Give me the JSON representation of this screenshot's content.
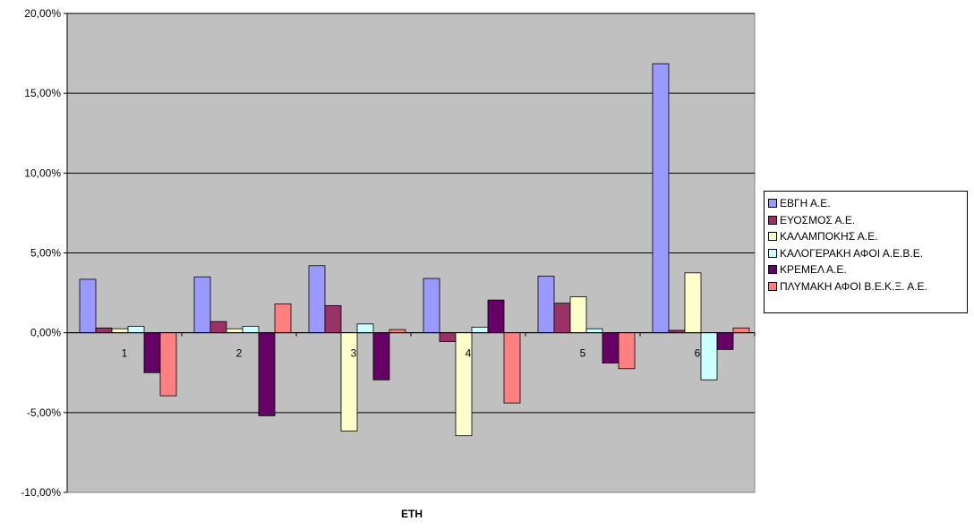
{
  "chart_data": {
    "type": "bar",
    "xlabel": "ΕΤΗ",
    "ylabel": "",
    "ylim": [
      -10,
      20
    ],
    "yticks": [
      -10,
      -5,
      0,
      5,
      10,
      15,
      20
    ],
    "ytick_labels": [
      "-10,00%",
      "-5,00%",
      "0,00%",
      "5,00%",
      "10,00%",
      "15,00%",
      "20,00%"
    ],
    "categories": [
      "1",
      "2",
      "3",
      "4",
      "5",
      "6"
    ],
    "grid": true,
    "legend_position": "right",
    "plot_background": "#c0c0c0",
    "series": [
      {
        "name": "ΕΒΓΗ Α.Ε.",
        "color": "#9999ff",
        "values": [
          3.35,
          3.5,
          4.2,
          3.4,
          3.55,
          16.85
        ]
      },
      {
        "name": "ΕΥΟΣΜΟΣ Α.Ε.",
        "color": "#993366",
        "values": [
          0.3,
          0.7,
          1.7,
          -0.55,
          1.85,
          0.15
        ]
      },
      {
        "name": "ΚΑΛΑΜΠΟΚΗΣ Α.Ε.",
        "color": "#ffffcc",
        "values": [
          0.25,
          0.25,
          -6.15,
          -6.45,
          2.25,
          3.75
        ]
      },
      {
        "name": "ΚΑΛΟΓΕΡΑΚΗ ΑΦΟΙ Α.Ε.Β.Ε.",
        "color": "#ccffff",
        "values": [
          0.4,
          0.4,
          0.55,
          0.35,
          0.25,
          -2.95
        ]
      },
      {
        "name": "ΚΡΕΜΕΛ Α.Ε.",
        "color": "#660066",
        "values": [
          -2.5,
          -5.2,
          -2.95,
          2.05,
          -1.9,
          -1.05
        ]
      },
      {
        "name": "ΠΛΥΜΑΚΗ ΑΦΟΙ Β.Ε.Κ.Ξ. Α.Ε.",
        "color": "#ff8080",
        "values": [
          -3.95,
          1.8,
          0.2,
          -4.4,
          -2.25,
          0.3
        ]
      }
    ]
  }
}
